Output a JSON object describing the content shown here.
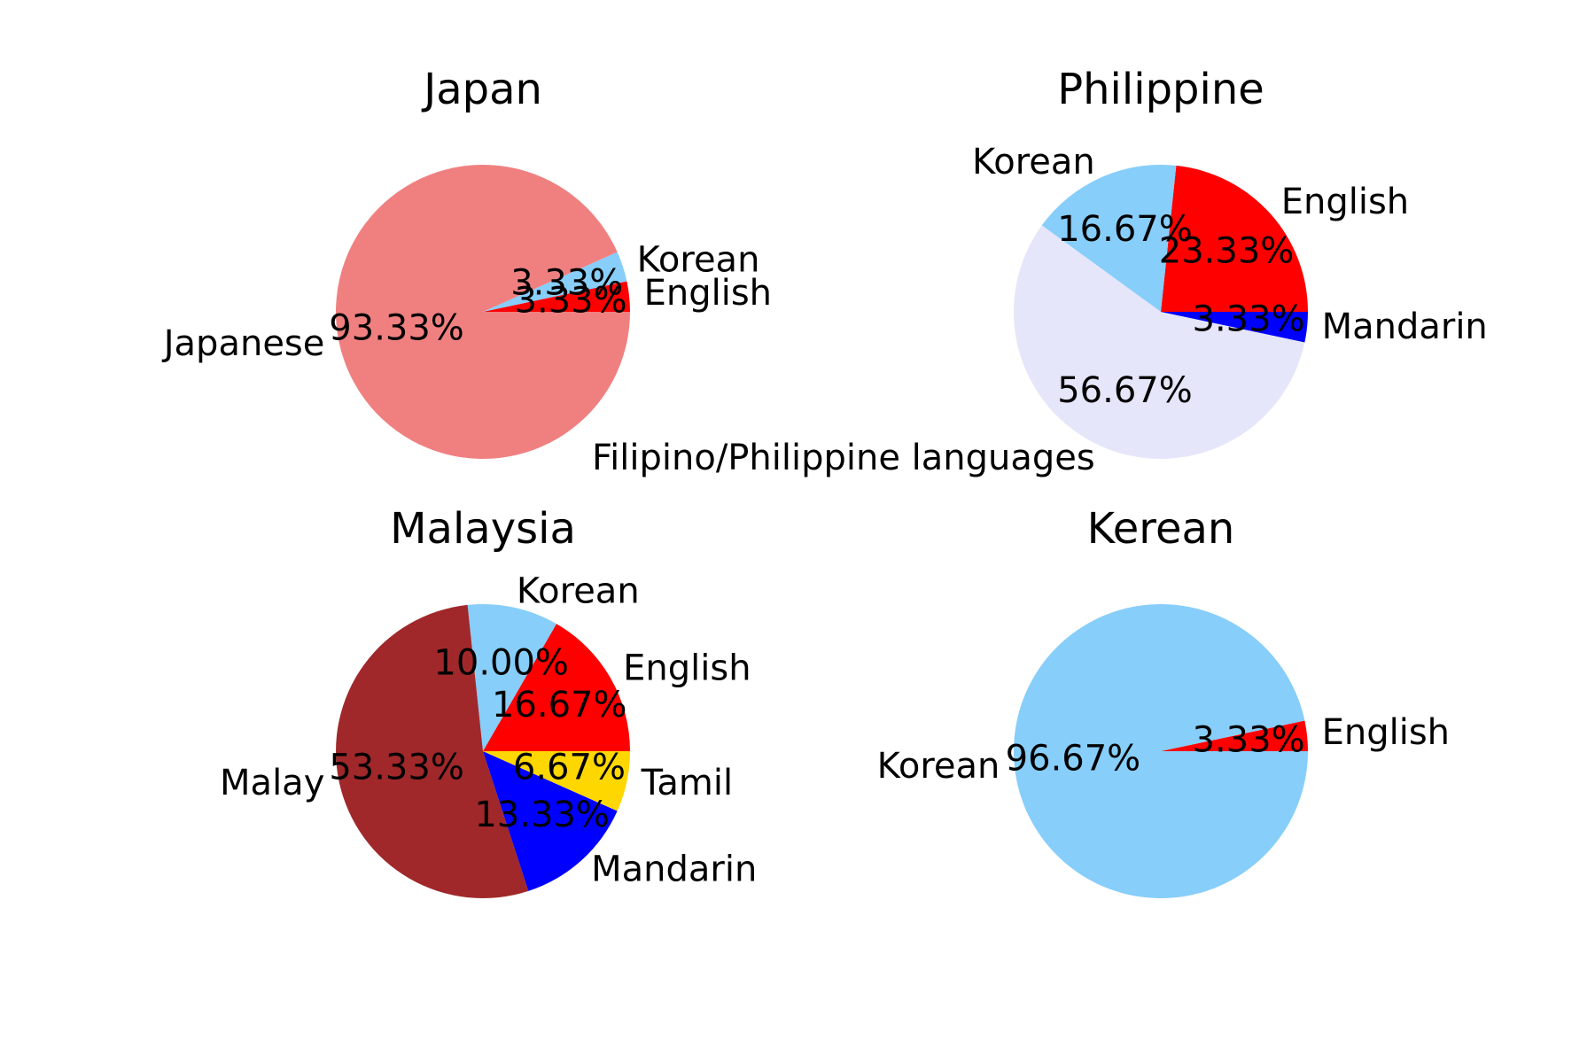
{
  "chart_data": [
    {
      "type": "pie",
      "title": "Japan",
      "slices": [
        {
          "label": "English",
          "value": 3.33,
          "pct_label": "3.33%",
          "color": "#ff0000"
        },
        {
          "label": "Korean",
          "value": 3.33,
          "pct_label": "3.33%",
          "color": "#87cefa"
        },
        {
          "label": "Japanese",
          "value": 93.33,
          "pct_label": "93.33%",
          "color": "#f08080"
        }
      ]
    },
    {
      "type": "pie",
      "title": "Philippine",
      "slices": [
        {
          "label": "English",
          "value": 23.33,
          "pct_label": "23.33%",
          "color": "#ff0000"
        },
        {
          "label": "Korean",
          "value": 16.67,
          "pct_label": "16.67%",
          "color": "#87cefa"
        },
        {
          "label": "Filipino/Philippine languages",
          "value": 56.67,
          "pct_label": "56.67%",
          "color": "#e6e6fa"
        },
        {
          "label": "Mandarin",
          "value": 3.33,
          "pct_label": "3.33%",
          "color": "#0000ff"
        }
      ]
    },
    {
      "type": "pie",
      "title": "Malaysia",
      "slices": [
        {
          "label": "English",
          "value": 16.67,
          "pct_label": "16.67%",
          "color": "#ff0000"
        },
        {
          "label": "Korean",
          "value": 10.0,
          "pct_label": "10.00%",
          "color": "#87cefa"
        },
        {
          "label": "Malay",
          "value": 53.33,
          "pct_label": "53.33%",
          "color": "#a0282a"
        },
        {
          "label": "Mandarin",
          "value": 13.33,
          "pct_label": "13.33%",
          "color": "#0000ff"
        },
        {
          "label": "Tamil",
          "value": 6.67,
          "pct_label": "6.67%",
          "color": "#ffd700"
        }
      ]
    },
    {
      "type": "pie",
      "title": "Kerean",
      "slices": [
        {
          "label": "English",
          "value": 3.33,
          "pct_label": "3.33%",
          "color": "#ff0000"
        },
        {
          "label": "Korean",
          "value": 96.67,
          "pct_label": "96.67%",
          "color": "#87cefa"
        }
      ]
    }
  ]
}
